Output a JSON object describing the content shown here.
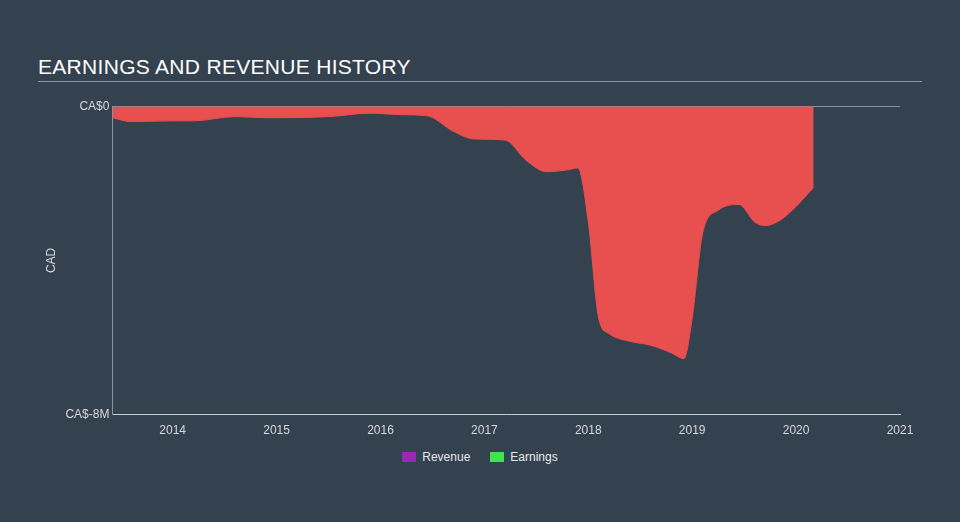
{
  "chart_data": {
    "type": "line",
    "title": "EARNINGS AND REVENUE HISTORY",
    "y_label": "CAD",
    "x": [
      2013.42,
      2013.6,
      2014.0,
      2014.2,
      2014.6,
      2014.9,
      2015.5,
      2015.9,
      2016.2,
      2016.45,
      2016.7,
      2016.9,
      2017.2,
      2017.4,
      2017.6,
      2017.8,
      2017.9,
      2018.0,
      2018.1,
      2018.2,
      2018.4,
      2018.6,
      2018.8,
      2018.92,
      2019.0,
      2019.1,
      2019.25,
      2019.45,
      2019.6,
      2019.7,
      2019.85,
      2020.0,
      2020.17
    ],
    "series": [
      {
        "name": "Revenue",
        "color": "#9c27b0",
        "values": [
          null,
          null,
          null,
          null,
          null,
          null,
          null,
          null,
          null,
          null,
          null,
          null,
          null,
          null,
          null,
          null,
          null,
          null,
          null,
          null,
          null,
          null,
          null,
          null,
          null,
          null,
          null,
          null,
          null,
          null,
          null,
          null,
          null
        ]
      },
      {
        "name": "Earnings",
        "color": "#3fe34f",
        "values": [
          -0.3,
          -0.4,
          -0.38,
          -0.38,
          -0.27,
          -0.3,
          -0.27,
          -0.18,
          -0.22,
          -0.25,
          -0.65,
          -0.85,
          -0.88,
          -1.4,
          -1.7,
          -1.65,
          -1.6,
          -3.0,
          -5.5,
          -5.9,
          -6.1,
          -6.2,
          -6.4,
          -6.55,
          -5.5,
          -3.3,
          -2.7,
          -2.55,
          -3.0,
          -3.1,
          -2.95,
          -2.6,
          -2.1
        ]
      }
    ],
    "xlim": [
      2013.42,
      2021
    ],
    "xticks": [
      2014,
      2015,
      2016,
      2017,
      2018,
      2019,
      2020,
      2021
    ],
    "ylim": [
      -8,
      0
    ],
    "yticks": [
      {
        "value": -8,
        "label": "CA$-8M"
      },
      {
        "value": 0,
        "label": "CA$0"
      }
    ],
    "grid": true
  }
}
